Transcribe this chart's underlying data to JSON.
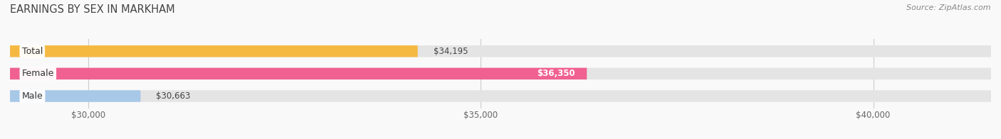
{
  "title": "EARNINGS BY SEX IN MARKHAM",
  "source": "Source: ZipAtlas.com",
  "categories": [
    "Male",
    "Female",
    "Total"
  ],
  "values": [
    30663,
    36350,
    34195
  ],
  "bar_colors": [
    "#a8c8e8",
    "#f06090",
    "#f5b942"
  ],
  "x_min": 29000,
  "x_max": 41500,
  "tick_values": [
    30000,
    35000,
    40000
  ],
  "tick_labels": [
    "$30,000",
    "$35,000",
    "$40,000"
  ],
  "bar_height": 0.52,
  "figsize": [
    14.06,
    1.96
  ],
  "dpi": 100,
  "title_fontsize": 10.5,
  "label_fontsize": 9,
  "value_fontsize": 8.5,
  "source_fontsize": 8,
  "bg_color": "#f9f9f9"
}
